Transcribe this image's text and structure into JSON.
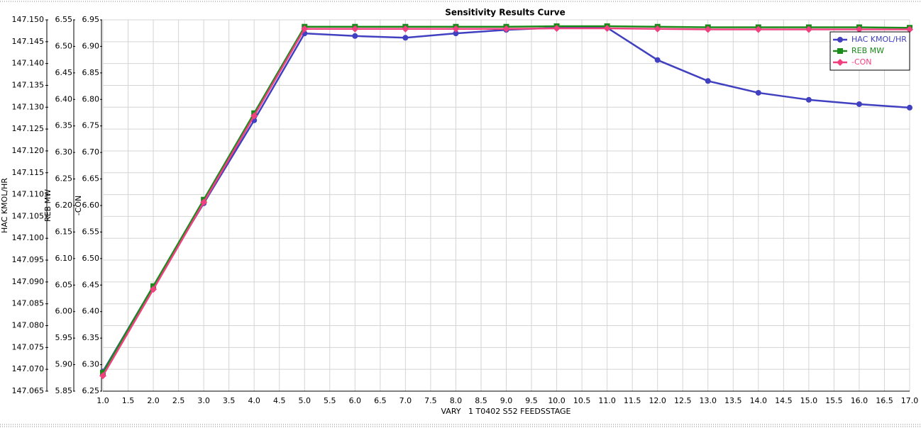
{
  "chart_data": {
    "type": "line",
    "title": "Sensitivity Results Curve",
    "xlabel": "VARY   1 T0402 S52 FEEDSSTAGE",
    "ylabel": "HAC KMOL/HR",
    "y2label": "REB MW",
    "y3label": "-CON",
    "x": [
      1,
      2,
      3,
      4,
      5,
      6,
      7,
      8,
      9,
      10,
      11,
      12,
      13,
      14,
      15,
      16,
      17
    ],
    "xlim": [
      1,
      17
    ],
    "xticks": [
      {
        "value": 1,
        "label": "1.0"
      },
      1.5,
      {
        "value": 2,
        "label": "2.0"
      },
      2.5,
      {
        "value": 3,
        "label": "3.0"
      },
      3.5,
      {
        "value": 4,
        "label": "4.0"
      },
      4.5,
      {
        "value": 5,
        "label": "5.0"
      },
      5.5,
      {
        "value": 6,
        "label": "6.0"
      },
      6.5,
      {
        "value": 7,
        "label": "7.0"
      },
      7.5,
      {
        "value": 8,
        "label": "8.0"
      },
      8.5,
      {
        "value": 9,
        "label": "9.0"
      },
      9.5,
      {
        "value": 10,
        "label": "10.0"
      },
      10.5,
      {
        "value": 11,
        "label": "11.0"
      },
      11.5,
      {
        "value": 12,
        "label": "12.0"
      },
      12.5,
      {
        "value": 13,
        "label": "13.0"
      },
      13.5,
      {
        "value": 14,
        "label": "14.0"
      },
      14.5,
      {
        "value": 15,
        "label": "15.0"
      },
      15.5,
      {
        "value": 16,
        "label": "16.0"
      },
      16.5,
      {
        "value": 17,
        "label": "17.0"
      }
    ],
    "ylim": [
      147.065,
      147.15
    ],
    "yticks": [
      147.065,
      {
        "value": 147.07,
        "label": "147.070"
      },
      147.075,
      {
        "value": 147.08,
        "label": "147.080"
      },
      147.085,
      {
        "value": 147.09,
        "label": "147.090"
      },
      147.095,
      {
        "value": 147.1,
        "label": "147.100"
      },
      147.105,
      {
        "value": 147.11,
        "label": "147.110"
      },
      147.115,
      {
        "value": 147.12,
        "label": "147.120"
      },
      147.125,
      {
        "value": 147.13,
        "label": "147.130"
      },
      147.135,
      {
        "value": 147.14,
        "label": "147.140"
      },
      147.145,
      {
        "value": 147.15,
        "label": "147.150"
      }
    ],
    "y2lim": [
      5.85,
      6.55
    ],
    "y2ticks": [
      5.85,
      {
        "value": 5.9,
        "label": "5.90"
      },
      5.95,
      {
        "value": 6,
        "label": "6.00"
      },
      6.05,
      {
        "value": 6.1,
        "label": "6.10"
      },
      6.15,
      {
        "value": 6.2,
        "label": "6.20"
      },
      6.25,
      {
        "value": 6.3,
        "label": "6.30"
      },
      6.35,
      {
        "value": 6.4,
        "label": "6.40"
      },
      6.45,
      {
        "value": 6.5,
        "label": "6.50"
      },
      6.55
    ],
    "y3lim": [
      6.25,
      6.95
    ],
    "y3ticks": [
      6.25,
      {
        "value": 6.3,
        "label": "6.30"
      },
      6.35,
      {
        "value": 6.4,
        "label": "6.40"
      },
      6.45,
      {
        "value": 6.5,
        "label": "6.50"
      },
      6.55,
      {
        "value": 6.6,
        "label": "6.60"
      },
      6.65,
      {
        "value": 6.7,
        "label": "6.70"
      },
      6.75,
      {
        "value": 6.8,
        "label": "6.80"
      },
      6.85,
      {
        "value": 6.9,
        "label": "6.90"
      },
      6.95
    ],
    "grid": true,
    "legend": "upper right",
    "series": [
      {
        "name": "HAC KMOL/HR",
        "color": "#4040c0",
        "marker": "circle",
        "axis": "y",
        "values": [
          147.0695,
          147.089,
          147.108,
          147.127,
          147.1469,
          147.1463,
          147.1459,
          147.1469,
          147.1477,
          147.1482,
          147.1482,
          147.1408,
          147.136,
          147.1333,
          147.1317,
          147.1307,
          147.1299
        ]
      },
      {
        "name": "REB MW",
        "color": "#1a8a1a",
        "marker": "square",
        "axis": "y2",
        "values": [
          5.885,
          6.048,
          6.211,
          6.374,
          6.537,
          6.537,
          6.537,
          6.537,
          6.537,
          6.538,
          6.538,
          6.537,
          6.536,
          6.536,
          6.536,
          6.536,
          6.535
        ]
      },
      {
        "name": "-CON",
        "color": "#f04080",
        "marker": "diamond",
        "axis": "y3",
        "values": [
          6.279,
          6.442,
          6.606,
          6.769,
          6.933,
          6.933,
          6.933,
          6.933,
          6.933,
          6.934,
          6.934,
          6.933,
          6.932,
          6.932,
          6.932,
          6.932,
          6.932
        ]
      }
    ]
  }
}
